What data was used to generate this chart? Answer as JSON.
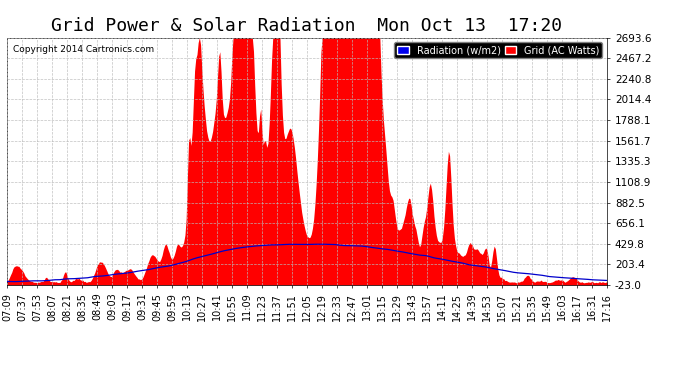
{
  "title": "Grid Power & Solar Radiation  Mon Oct 13  17:20",
  "copyright": "Copyright 2014 Cartronics.com",
  "legend_radiation": "Radiation (w/m2)",
  "legend_grid": "Grid (AC Watts)",
  "yticks": [
    -23.0,
    203.4,
    429.8,
    656.1,
    882.5,
    1108.9,
    1335.3,
    1561.7,
    1788.1,
    2014.4,
    2240.8,
    2467.2,
    2693.6
  ],
  "ymin": -23.0,
  "ymax": 2693.6,
  "bg_color": "#ffffff",
  "plot_bg_color": "#ffffff",
  "grid_color": "#bbbbbb",
  "radiation_color": "#0000cc",
  "grid_power_color": "#ff0000",
  "title_fontsize": 13,
  "xlabel_rotation": 90,
  "xlabel_fontsize": 7,
  "xtick_labels": [
    "07:09",
    "07:37",
    "07:53",
    "08:07",
    "08:21",
    "08:35",
    "08:49",
    "09:03",
    "09:17",
    "09:31",
    "09:45",
    "09:59",
    "10:13",
    "10:27",
    "10:41",
    "10:55",
    "11:09",
    "11:23",
    "11:37",
    "11:51",
    "12:05",
    "12:19",
    "12:33",
    "12:47",
    "13:01",
    "13:15",
    "13:29",
    "13:43",
    "13:57",
    "14:11",
    "14:25",
    "14:39",
    "14:53",
    "15:07",
    "15:21",
    "15:35",
    "15:49",
    "16:03",
    "16:17",
    "16:31",
    "17:16"
  ]
}
